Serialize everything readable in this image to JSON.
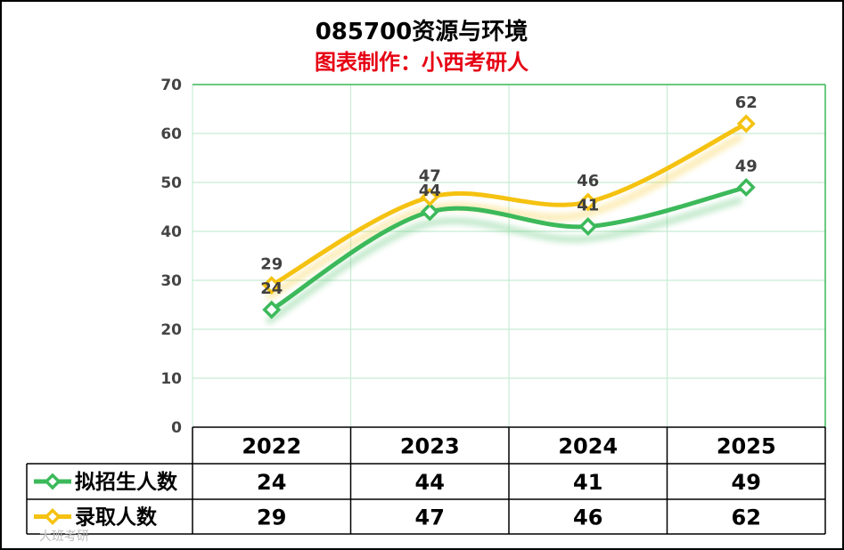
{
  "chart_data": {
    "type": "line",
    "title": "085700资源与环境",
    "subtitle": "图表制作：小西考研人",
    "categories": [
      "2022",
      "2023",
      "2024",
      "2025"
    ],
    "ylim": [
      0,
      70
    ],
    "yticks": [
      0,
      10,
      20,
      30,
      40,
      50,
      60,
      70
    ],
    "grid": true,
    "series": [
      {
        "name": "拟招生人数",
        "values": [
          24,
          44,
          41,
          49
        ],
        "color": "#3CB95A"
      },
      {
        "name": "录取人数",
        "values": [
          29,
          47,
          46,
          62
        ],
        "color": "#F5C211"
      }
    ],
    "data_table": true
  },
  "colors": {
    "subtitle": "#E60012",
    "grid": "#C8ECD4",
    "axis": "#3CB95A"
  },
  "watermark": "大班考研"
}
